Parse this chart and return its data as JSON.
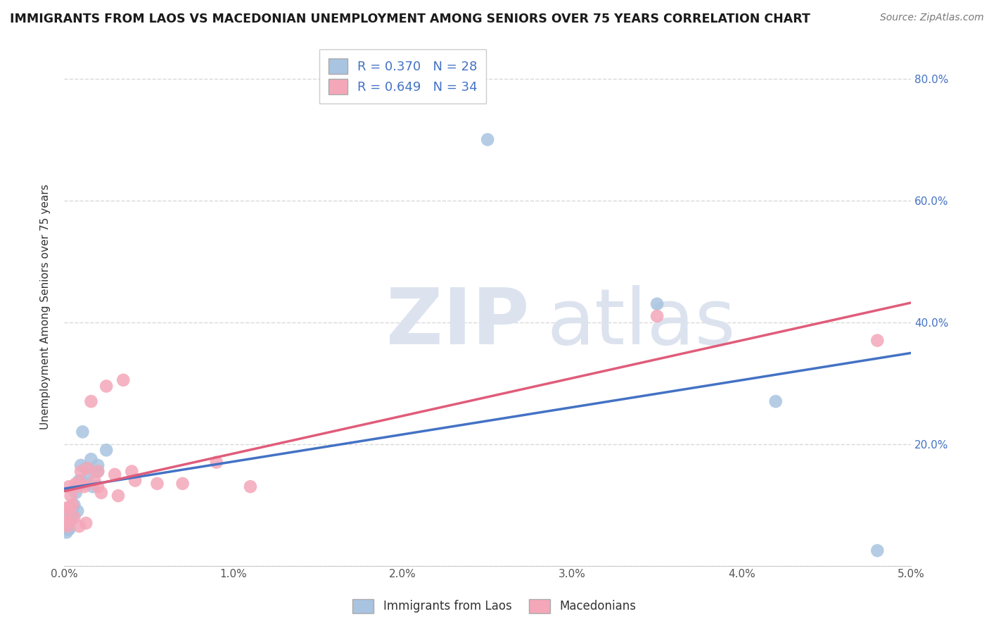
{
  "title": "IMMIGRANTS FROM LAOS VS MACEDONIAN UNEMPLOYMENT AMONG SENIORS OVER 75 YEARS CORRELATION CHART",
  "source": "Source: ZipAtlas.com",
  "ylabel": "Unemployment Among Seniors over 75 years",
  "xlim": [
    0.0,
    0.05
  ],
  "ylim": [
    0.0,
    0.85
  ],
  "x_ticks": [
    0.0,
    0.01,
    0.02,
    0.03,
    0.04,
    0.05
  ],
  "x_tick_labels": [
    "0.0%",
    "1.0%",
    "2.0%",
    "3.0%",
    "4.0%",
    "5.0%"
  ],
  "y_ticks": [
    0.0,
    0.2,
    0.4,
    0.6,
    0.8
  ],
  "right_y_tick_labels": [
    "",
    "20.0%",
    "40.0%",
    "60.0%",
    "80.0%"
  ],
  "laos_R": 0.37,
  "laos_N": 28,
  "mac_R": 0.649,
  "mac_N": 34,
  "laos_color": "#a8c4e0",
  "mac_color": "#f4a7b9",
  "laos_line_color": "#4472c4",
  "mac_line_color": "#e05c7a",
  "watermark_color": "#dce3ef",
  "background_color": "#ffffff",
  "grid_color": "#d8d8d8",
  "laos_x": [
    0.00015,
    0.0002,
    0.00025,
    0.0003,
    0.0003,
    0.0004,
    0.0004,
    0.0005,
    0.0005,
    0.0006,
    0.0007,
    0.0008,
    0.0009,
    0.001,
    0.001,
    0.0011,
    0.0012,
    0.0013,
    0.0015,
    0.0016,
    0.0017,
    0.002,
    0.002,
    0.0025,
    0.025,
    0.035,
    0.042,
    0.048
  ],
  "laos_y": [
    0.055,
    0.065,
    0.06,
    0.06,
    0.08,
    0.075,
    0.09,
    0.08,
    0.09,
    0.1,
    0.12,
    0.09,
    0.14,
    0.165,
    0.14,
    0.22,
    0.135,
    0.16,
    0.15,
    0.175,
    0.13,
    0.155,
    0.165,
    0.19,
    0.7,
    0.43,
    0.27,
    0.025
  ],
  "mac_x": [
    0.0001,
    0.00015,
    0.0002,
    0.00025,
    0.0003,
    0.0003,
    0.0004,
    0.0005,
    0.0006,
    0.0007,
    0.0008,
    0.0009,
    0.001,
    0.001,
    0.0012,
    0.0013,
    0.0014,
    0.0016,
    0.0018,
    0.002,
    0.002,
    0.0022,
    0.0025,
    0.003,
    0.0032,
    0.0035,
    0.004,
    0.0042,
    0.0055,
    0.007,
    0.009,
    0.011,
    0.035,
    0.048
  ],
  "mac_y": [
    0.07,
    0.095,
    0.065,
    0.075,
    0.13,
    0.095,
    0.115,
    0.1,
    0.08,
    0.135,
    0.13,
    0.065,
    0.155,
    0.135,
    0.13,
    0.07,
    0.16,
    0.27,
    0.14,
    0.155,
    0.13,
    0.12,
    0.295,
    0.15,
    0.115,
    0.305,
    0.155,
    0.14,
    0.135,
    0.135,
    0.17,
    0.13,
    0.41,
    0.37
  ]
}
